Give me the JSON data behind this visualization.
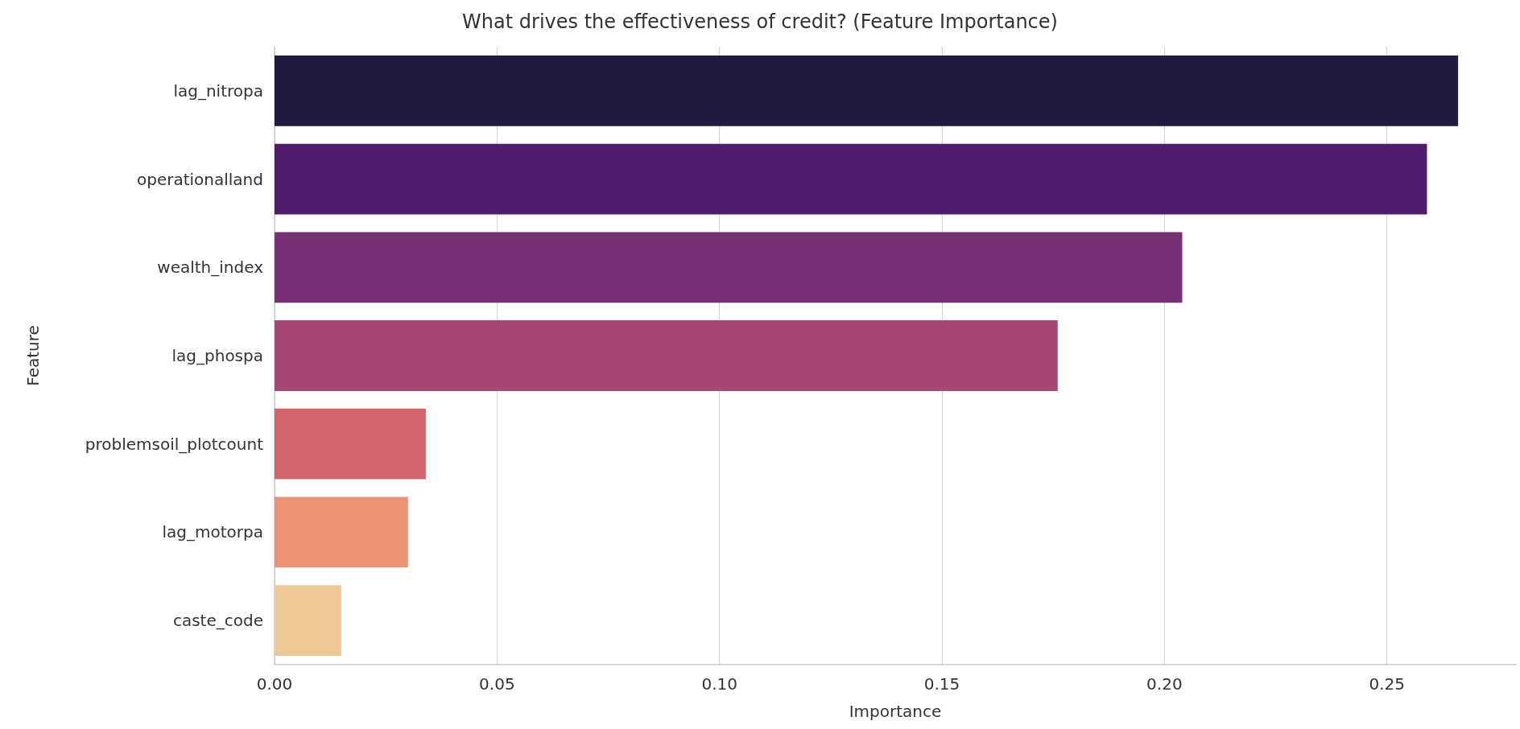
{
  "chart_data": {
    "type": "bar",
    "orientation": "horizontal",
    "title": "What drives the effectiveness of credit? (Feature Importance)",
    "xlabel": "Importance",
    "ylabel": "Feature",
    "categories": [
      "lag_nitropa",
      "operationalland",
      "wealth_index",
      "lag_phospa",
      "problemsoil_plotcount",
      "lag_motorpa",
      "caste_code"
    ],
    "values": [
      0.266,
      0.259,
      0.204,
      0.176,
      0.034,
      0.03,
      0.015
    ],
    "colors": [
      "#221a3f",
      "#4f1c6b",
      "#772f75",
      "#a64775",
      "#d5636c",
      "#eb9375",
      "#f0c896"
    ],
    "xlim": [
      0,
      0.279
    ],
    "xticks": [
      {
        "value": 0,
        "label": "0.00"
      },
      {
        "value": 0.05,
        "label": "0.05"
      },
      {
        "value": 0.1,
        "label": "0.10"
      },
      {
        "value": 0.15,
        "label": "0.15"
      },
      {
        "value": 0.2,
        "label": "0.20"
      },
      {
        "value": 0.25,
        "label": "0.25"
      }
    ],
    "grid": "x"
  }
}
